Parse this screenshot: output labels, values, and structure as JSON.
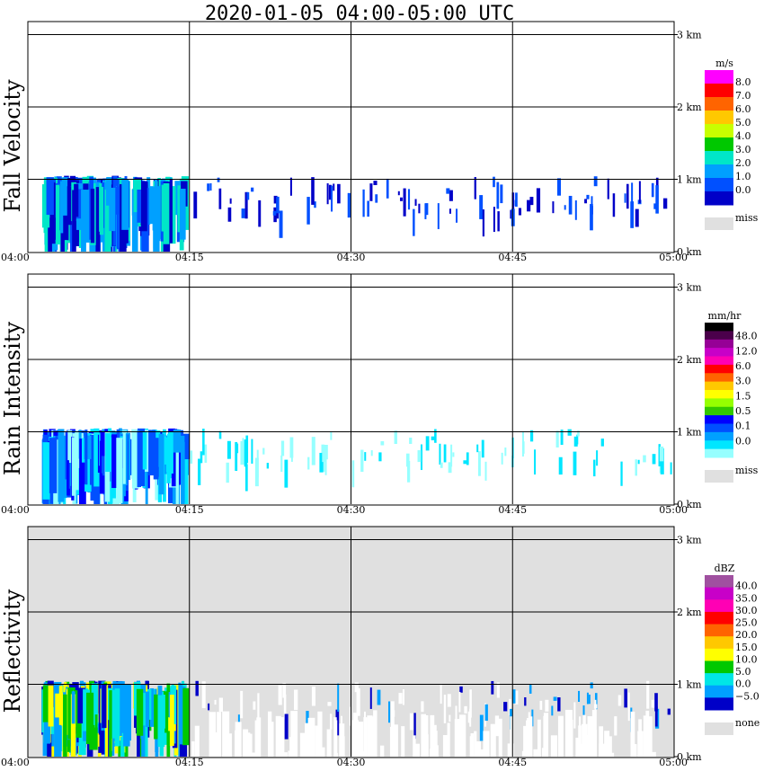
{
  "title": "2020-01-05   04:00-05:00 UTC",
  "time_ticks": [
    "04:00",
    "04:15",
    "04:30",
    "04:45",
    "05:00"
  ],
  "height_ticks": [
    "0 km",
    "1 km",
    "2 km",
    "3 km"
  ],
  "colors": {
    "missing_background": "#e0e0e0",
    "frame": "#000000"
  },
  "chart_data": [
    {
      "type": "heatmap",
      "ylabel": "Fall Velocity",
      "x_range": [
        "04:00",
        "05:00"
      ],
      "y_range_km": [
        0,
        3.2
      ],
      "grid": true,
      "background": "#ffffff",
      "colorbar": {
        "unit": "m/s",
        "labels": [
          "8.0",
          "7.0",
          "6.0",
          "5.0",
          "4.0",
          "3.0",
          "2.0",
          "1.0",
          "0.0"
        ],
        "colors": [
          "#ff00ff",
          "#ff0000",
          "#ff6400",
          "#ffc800",
          "#c8ff00",
          "#00c800",
          "#00e6c8",
          "#00a0ff",
          "#0050ff",
          "#0000c8"
        ],
        "missing_label": "miss"
      }
    },
    {
      "type": "heatmap",
      "ylabel": "Rain Intensity",
      "x_range": [
        "04:00",
        "05:00"
      ],
      "y_range_km": [
        0,
        3.2
      ],
      "grid": true,
      "background": "#ffffff",
      "colorbar": {
        "unit": "mm/hr",
        "labels": [
          "48.0",
          "12.0",
          "6.0",
          "3.0",
          "1.5",
          "0.5",
          "0.1",
          "0.0"
        ],
        "colors": [
          "#000000",
          "#4b004b",
          "#960096",
          "#c800c8",
          "#ff00b4",
          "#ff0000",
          "#ff6400",
          "#ffc800",
          "#ffff00",
          "#96ff00",
          "#32c800",
          "#0000ff",
          "#0050ff",
          "#00a0ff",
          "#00e6ff",
          "#96ffff"
        ],
        "missing_label": "miss"
      }
    },
    {
      "type": "heatmap",
      "ylabel": "Reflectivity",
      "x_range": [
        "04:00",
        "05:00"
      ],
      "y_range_km": [
        0,
        3.2
      ],
      "grid": true,
      "background": "#e0e0e0",
      "colorbar": {
        "unit": "dBZ",
        "labels": [
          "40.0",
          "35.0",
          "30.0",
          "25.0",
          "20.0",
          "15.0",
          "10.0",
          "5.0",
          "0.0",
          "−5.0"
        ],
        "colors": [
          "#a050a0",
          "#c800c8",
          "#ff00b4",
          "#ff0000",
          "#ff6400",
          "#ffc800",
          "#ffff00",
          "#00c800",
          "#00e6e6",
          "#00a0ff",
          "#0000c8"
        ],
        "missing_label": "none"
      }
    }
  ]
}
